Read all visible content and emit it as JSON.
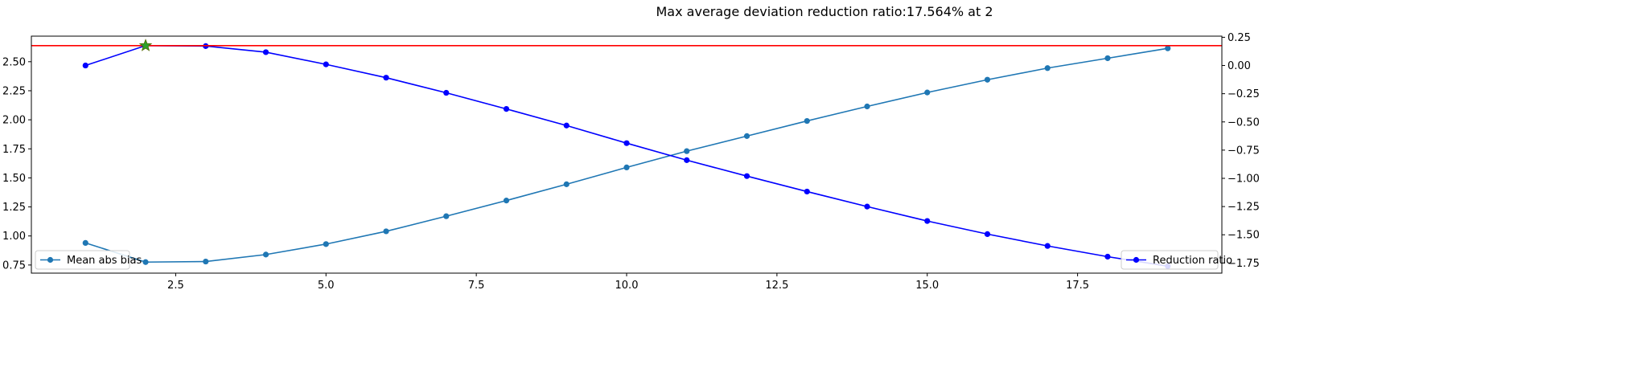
{
  "chart_data": {
    "type": "line",
    "title": "Max average deviation reduction ratio:17.564% at 2",
    "x": [
      1,
      2,
      3,
      4,
      5,
      6,
      7,
      8,
      9,
      10,
      11,
      12,
      13,
      14,
      15,
      16,
      17,
      18,
      19
    ],
    "xlim": [
      0.1,
      19.9
    ],
    "xticks": [
      2.5,
      5.0,
      7.5,
      10.0,
      12.5,
      15.0,
      17.5
    ],
    "xtick_labels": [
      "2.5",
      "5.0",
      "7.5",
      "10.0",
      "12.5",
      "15.0",
      "17.5"
    ],
    "left_axis": {
      "ylim": [
        0.68,
        2.72
      ],
      "yticks": [
        0.75,
        1.0,
        1.25,
        1.5,
        1.75,
        2.0,
        2.25,
        2.5
      ],
      "ytick_labels": [
        "0.75",
        "1.00",
        "1.25",
        "1.50",
        "1.75",
        "2.00",
        "2.25",
        "2.50"
      ]
    },
    "right_axis": {
      "ylim": [
        -1.84,
        0.26
      ],
      "yticks": [
        -1.75,
        -1.5,
        -1.25,
        -1.0,
        -0.75,
        -0.5,
        -0.25,
        0.0,
        0.25
      ],
      "ytick_labels": [
        "−1.75",
        "−1.50",
        "−1.25",
        "−1.00",
        "−0.75",
        "−0.50",
        "−0.25",
        "0.00",
        "0.25"
      ]
    },
    "series": [
      {
        "name": "Mean abs bias",
        "axis": "left",
        "color": "#1f77b4",
        "marker": "circle",
        "values": [
          0.94,
          0.775,
          0.78,
          0.84,
          0.93,
          1.04,
          1.17,
          1.305,
          1.445,
          1.59,
          1.73,
          1.86,
          1.99,
          2.115,
          2.235,
          2.345,
          2.445,
          2.53,
          2.615
        ]
      },
      {
        "name": "Reduction ratio",
        "axis": "right",
        "color": "#0000ff",
        "marker": "circle",
        "values": [
          0.0,
          0.176,
          0.172,
          0.118,
          0.01,
          -0.108,
          -0.242,
          -0.385,
          -0.532,
          -0.688,
          -0.839,
          -0.98,
          -1.117,
          -1.25,
          -1.378,
          -1.494,
          -1.599,
          -1.694,
          -1.778
        ]
      }
    ],
    "reference_line": {
      "axis": "right",
      "value": 0.176,
      "color": "#ff0000"
    },
    "best_marker": {
      "x": 2,
      "axis": "right",
      "value": 0.176,
      "marker": "star",
      "color": "#2ca02c"
    },
    "legends": [
      {
        "series": "Mean abs bias",
        "placement": "lower-left"
      },
      {
        "series": "Reduction ratio",
        "placement": "lower-right"
      }
    ],
    "grid": false
  }
}
